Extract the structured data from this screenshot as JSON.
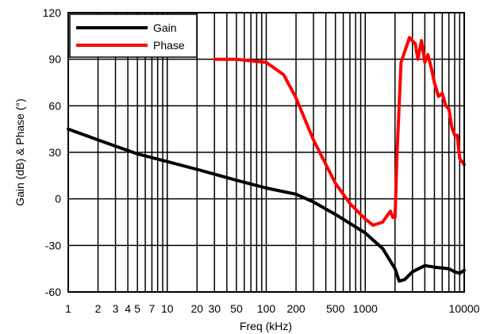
{
  "chart_data": {
    "type": "line",
    "xlabel": "Freq (kHz)",
    "ylabel": "Gain (dB) & Phase (°)",
    "x_scale": "log",
    "xlim": [
      1,
      10000
    ],
    "ylim": [
      -60,
      120
    ],
    "x_tick_values": [
      1,
      2,
      3,
      4,
      5,
      7,
      10,
      20,
      30,
      50,
      100,
      200,
      500,
      1000,
      10000
    ],
    "x_tick_labels": [
      "1",
      "2",
      "3",
      "4",
      "5",
      "7",
      "10",
      "20",
      "30",
      "50",
      "100",
      "200",
      "500",
      "1000",
      "10000"
    ],
    "y_ticks": [
      -60,
      -30,
      0,
      30,
      60,
      90,
      120
    ],
    "grid": true,
    "legend_position": "top-left",
    "series": [
      {
        "name": "Gain",
        "color": "#000000",
        "x": [
          1,
          2,
          5,
          10,
          20,
          50,
          100,
          200,
          300,
          500,
          1000,
          1500,
          2000,
          2200,
          2500,
          3000,
          4000,
          5000,
          7000,
          8000,
          9000,
          10000
        ],
        "y": [
          45,
          38,
          29,
          24,
          19,
          12,
          7,
          3,
          -2,
          -10,
          -22,
          -32,
          -45,
          -53,
          -52,
          -47,
          -43,
          -44,
          -45,
          -47,
          -48,
          -46
        ]
      },
      {
        "name": "Phase",
        "color": "#ff0000",
        "x": [
          30,
          50,
          100,
          150,
          200,
          300,
          500,
          700,
          1000,
          1200,
          1500,
          1700,
          1800,
          1900,
          2000,
          2100,
          2300,
          2800,
          3200,
          3400,
          3700,
          4000,
          4300,
          4700,
          5000,
          5500,
          6000,
          6500,
          7000,
          7500,
          8000,
          8500,
          9000,
          10000
        ],
        "y": [
          90,
          90,
          88,
          80,
          65,
          38,
          10,
          -3,
          -13,
          -17,
          -15,
          -10,
          -8,
          -12,
          -12,
          30,
          88,
          104,
          100,
          90,
          102,
          88,
          93,
          83,
          75,
          66,
          68,
          60,
          58,
          46,
          41,
          41,
          26,
          22
        ]
      }
    ]
  }
}
